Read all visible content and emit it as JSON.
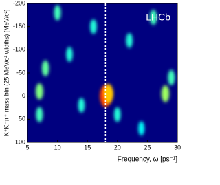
{
  "chart_data": {
    "type": "heatmap",
    "annotation": "LHCb",
    "xlabel": "Frequency, ω [ps⁻¹]",
    "ylabel": "K⁺K⁻π⁺ mass bin (25 MeV/c² widths)  [MeV/c²]",
    "xlim": [
      5,
      30
    ],
    "xticks": [
      5,
      10,
      15,
      20,
      25,
      30
    ],
    "ylim": [
      -200,
      100
    ],
    "yticks": [
      -200,
      -150,
      -100,
      -50,
      0,
      50,
      100
    ],
    "y_inverted": true,
    "background_color": "#00007f",
    "marker_x": 18,
    "hotspots": {
      "x": [
        18,
        18.5,
        28,
        7,
        8,
        7,
        10,
        16,
        22,
        26,
        12,
        20,
        29,
        14,
        24
      ],
      "y": [
        0,
        -5,
        -5,
        -10,
        -60,
        40,
        -180,
        -150,
        -120,
        -170,
        -90,
        40,
        -40,
        20,
        70
      ],
      "level": [
        1.0,
        0.8,
        0.55,
        0.5,
        0.45,
        0.4,
        0.4,
        0.35,
        0.35,
        0.4,
        0.35,
        0.35,
        0.4,
        0.35,
        0.3
      ]
    }
  }
}
